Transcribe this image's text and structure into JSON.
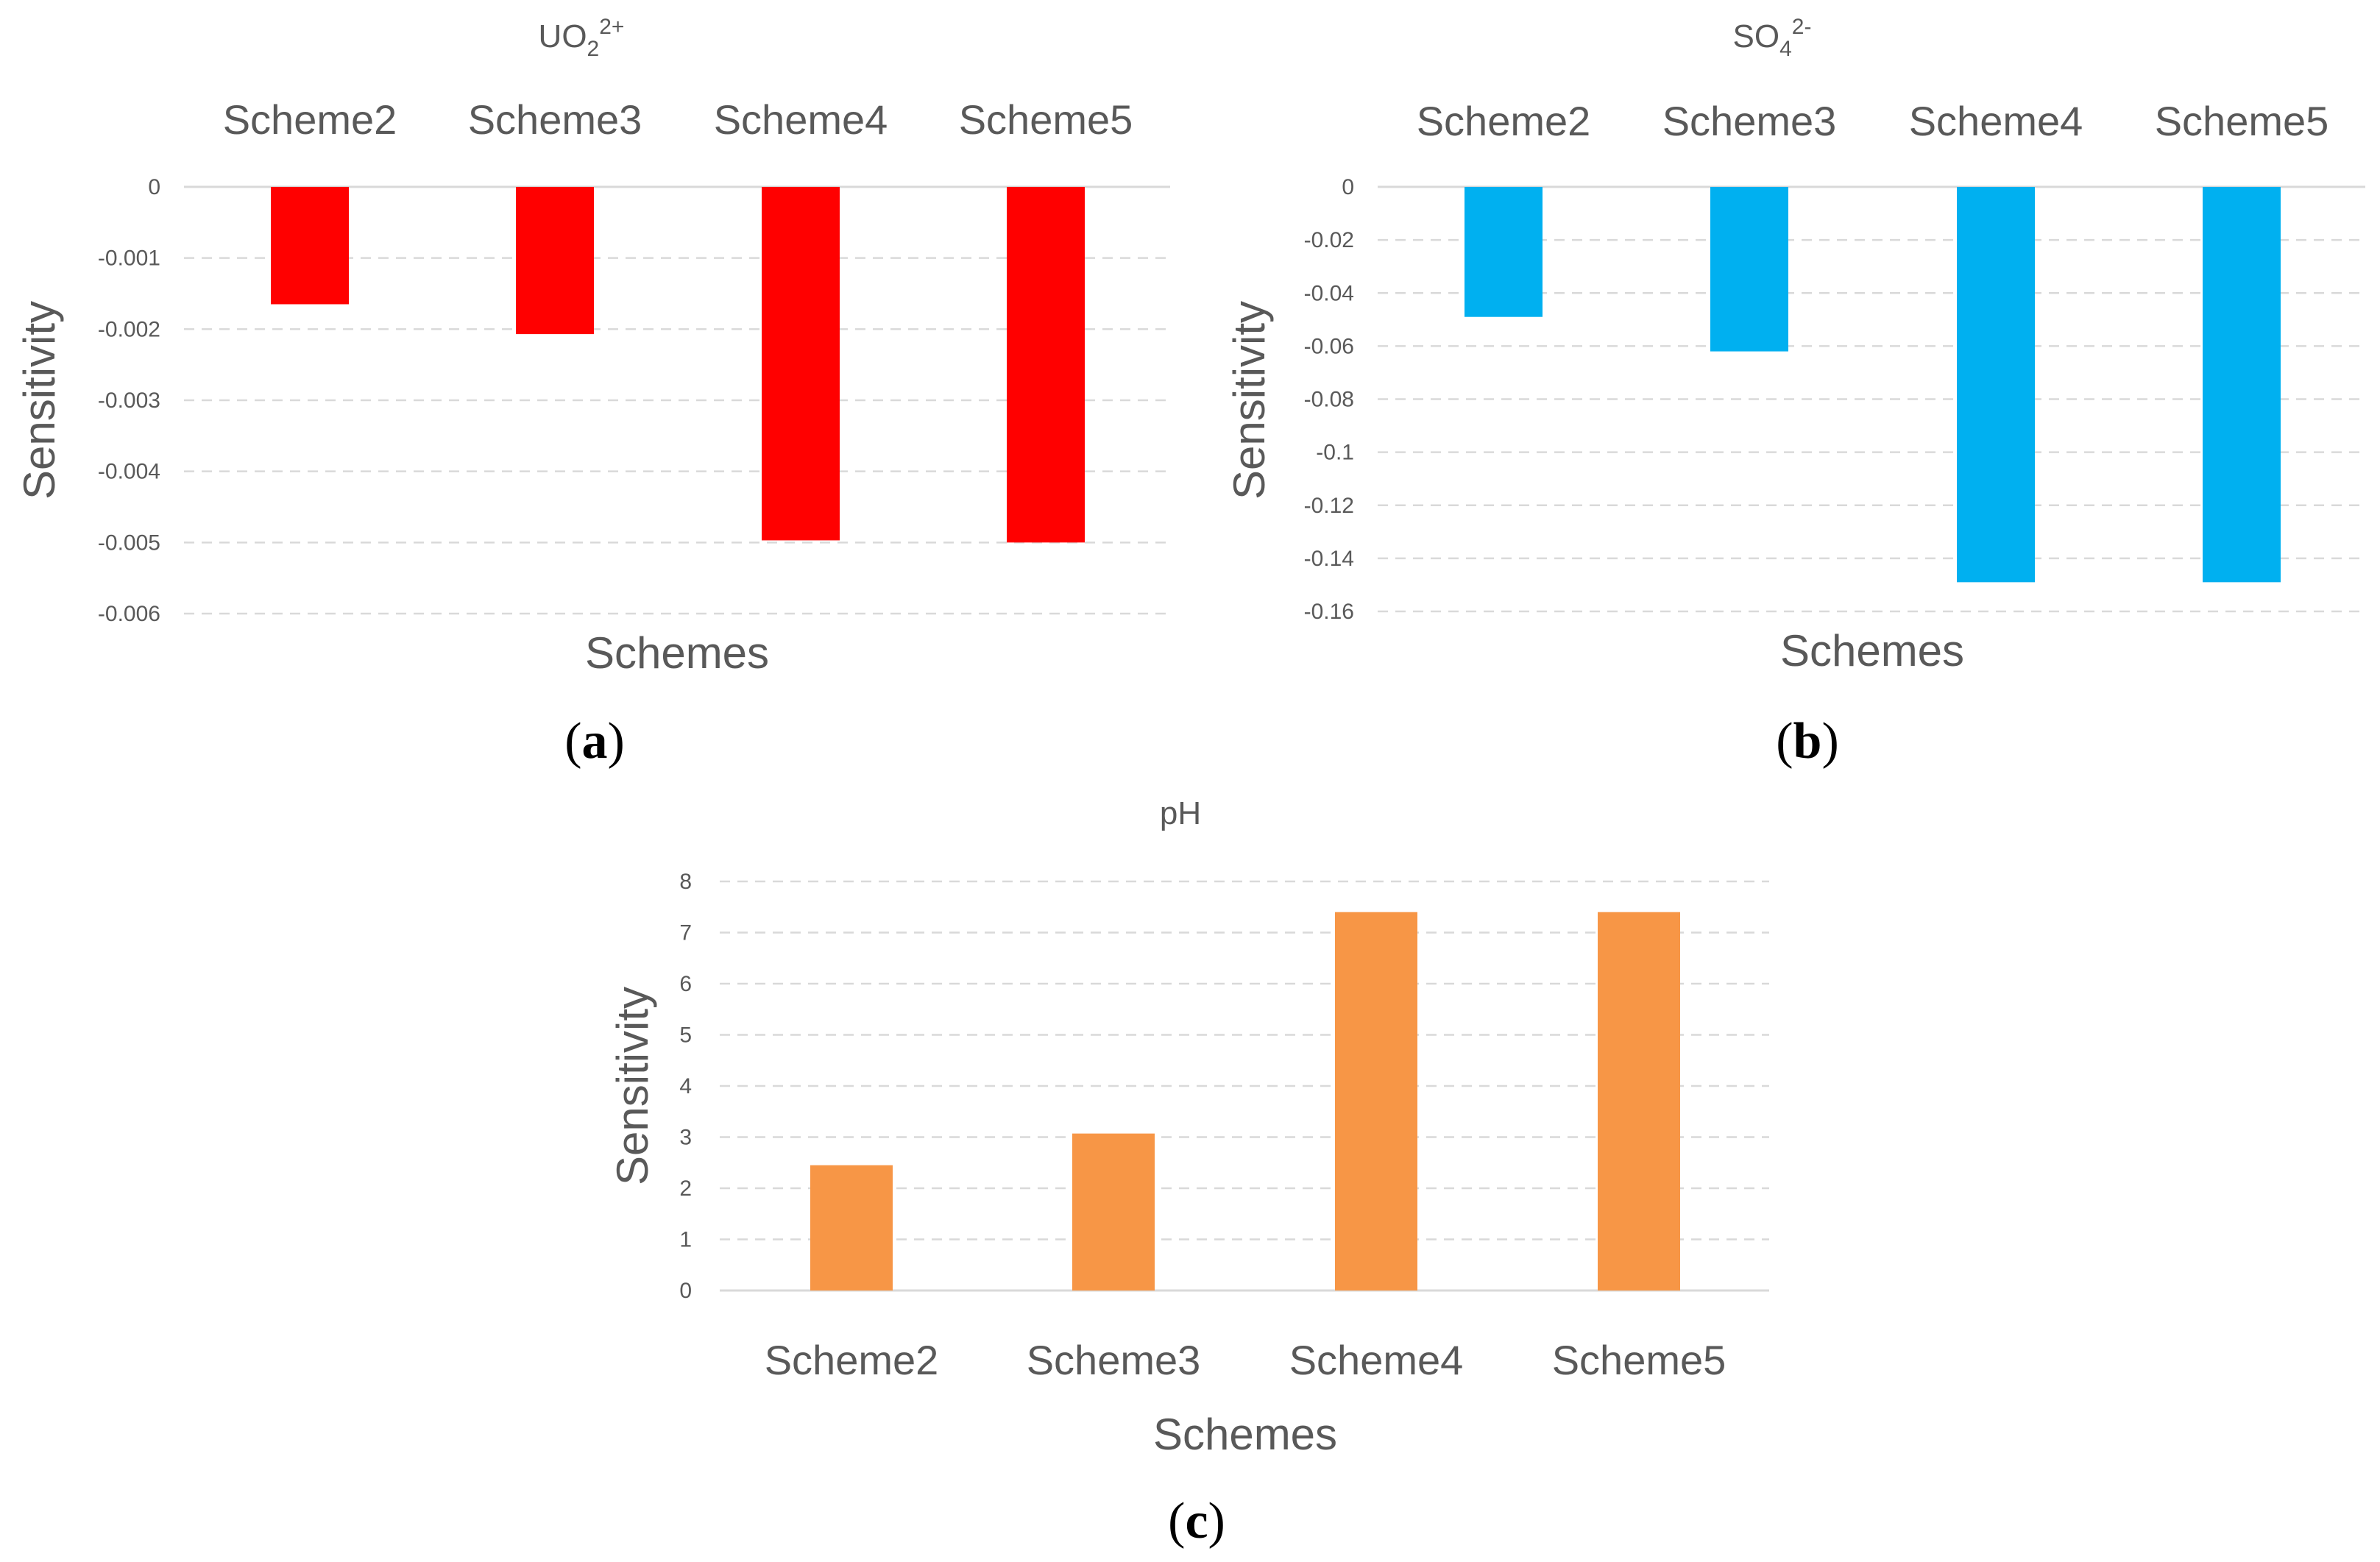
{
  "chart_data": [
    {
      "id": "a",
      "type": "bar",
      "title": "UO22+",
      "title_parts": {
        "base": "UO",
        "sub": "2",
        "sup": "2+"
      },
      "panel_label": "a",
      "categories": [
        "Scheme2",
        "Scheme3",
        "Scheme4",
        "Scheme5"
      ],
      "values": [
        -0.00165,
        -0.00207,
        -0.00497,
        -0.005
      ],
      "ylim": [
        -0.006,
        0
      ],
      "yticks": [
        0,
        -0.001,
        -0.002,
        -0.003,
        -0.004,
        -0.005,
        -0.006
      ],
      "ytick_labels": [
        "0",
        "-0.001",
        "-0.002",
        "-0.003",
        "-0.004",
        "-0.005",
        "-0.006"
      ],
      "xlabel": "Schemes",
      "ylabel": "Sensitivity",
      "color": "#ff0000",
      "category_axis": "top",
      "grid": true
    },
    {
      "id": "b",
      "type": "bar",
      "title": "SO42-",
      "title_parts": {
        "base": "SO",
        "sub": "4",
        "sup": "2-"
      },
      "panel_label": "b",
      "categories": [
        "Scheme2",
        "Scheme3",
        "Scheme4",
        "Scheme5"
      ],
      "values": [
        -0.049,
        -0.062,
        -0.149,
        -0.149
      ],
      "ylim": [
        -0.16,
        0
      ],
      "yticks": [
        0,
        -0.02,
        -0.04,
        -0.06,
        -0.08,
        -0.1,
        -0.12,
        -0.14,
        -0.16
      ],
      "ytick_labels": [
        "0",
        "-0.02",
        "-0.04",
        "-0.06",
        "-0.08",
        "-0.1",
        "-0.12",
        "-0.14",
        "-0.16"
      ],
      "xlabel": "Schemes",
      "ylabel": "Sensitivity",
      "color": "#00b0f0",
      "category_axis": "top",
      "grid": true
    },
    {
      "id": "c",
      "type": "bar",
      "title": "pH",
      "title_parts": {
        "base": "pH",
        "sub": "",
        "sup": ""
      },
      "panel_label": "c",
      "categories": [
        "Scheme2",
        "Scheme3",
        "Scheme4",
        "Scheme5"
      ],
      "values": [
        2.45,
        3.07,
        7.4,
        7.4
      ],
      "ylim": [
        0,
        8
      ],
      "yticks": [
        0,
        1,
        2,
        3,
        4,
        5,
        6,
        7,
        8
      ],
      "ytick_labels": [
        "0",
        "1",
        "2",
        "3",
        "4",
        "5",
        "6",
        "7",
        "8"
      ],
      "xlabel": "Schemes",
      "ylabel": "Sensitivity",
      "color": "#f79646",
      "category_axis": "bottom",
      "grid": true
    }
  ]
}
